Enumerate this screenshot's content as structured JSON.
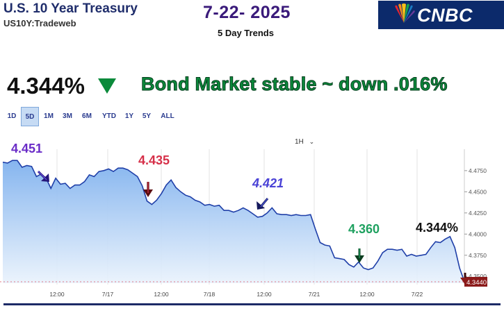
{
  "header": {
    "symbol_title": "U.S. 10 Year Treasury",
    "symbol_sub": "US10Y:Tradeweb",
    "date_title": "7-22- 2025",
    "subtitle": "5 Day Trends",
    "logo_text": "CNBC"
  },
  "quote": {
    "price": "4.344%",
    "direction_icon": "down-triangle-icon",
    "direction_color": "#0b8a3b",
    "headline": "Bond Market stable ~ down .016%"
  },
  "timeframe_tabs": [
    {
      "label": "1D",
      "active": false
    },
    {
      "label": "5D",
      "active": true
    },
    {
      "label": "1M",
      "active": false
    },
    {
      "label": "3M",
      "active": false
    },
    {
      "label": "6M",
      "active": false
    },
    {
      "label": "YTD",
      "active": false
    },
    {
      "label": "1Y",
      "active": false
    },
    {
      "label": "5Y",
      "active": false
    },
    {
      "label": "ALL",
      "active": false
    }
  ],
  "interval_select": "1H",
  "chart_data": {
    "type": "area",
    "x_labels": [
      "12:00",
      "7/17",
      "12:00",
      "7/18",
      "12:00",
      "7/21",
      "12:00",
      "7/22"
    ],
    "y_ticks": [
      "4.4750",
      "4.4500",
      "4.4250",
      "4.4000",
      "4.3750",
      "4.3500"
    ],
    "ylim": [
      4.342,
      4.488
    ],
    "current_value_label": "4.3440",
    "line_color": "#1f3fa8",
    "fill_color": "#9cc3f0",
    "points": [
      4.485,
      4.484,
      4.487,
      4.487,
      4.479,
      4.481,
      4.48,
      4.468,
      4.471,
      4.466,
      4.454,
      4.466,
      4.459,
      4.46,
      4.454,
      4.458,
      4.458,
      4.462,
      4.47,
      4.468,
      4.474,
      4.475,
      4.477,
      4.474,
      4.478,
      4.478,
      4.476,
      4.472,
      4.468,
      4.457,
      4.439,
      4.435,
      4.44,
      4.448,
      4.458,
      4.464,
      4.455,
      4.45,
      4.446,
      4.444,
      4.44,
      4.438,
      4.434,
      4.435,
      4.433,
      4.434,
      4.428,
      4.428,
      4.426,
      4.428,
      4.431,
      4.428,
      4.424,
      4.42,
      4.421,
      4.425,
      4.431,
      4.424,
      4.423,
      4.423,
      4.422,
      4.423,
      4.422,
      4.422,
      4.423,
      4.406,
      4.39,
      4.387,
      4.386,
      4.372,
      4.371,
      4.37,
      4.364,
      4.361,
      4.367,
      4.36,
      4.358,
      4.36,
      4.368,
      4.378,
      4.382,
      4.382,
      4.381,
      4.382,
      4.374,
      4.376,
      4.374,
      4.375,
      4.376,
      4.384,
      4.391,
      4.39,
      4.394,
      4.397,
      4.384,
      4.36,
      4.344
    ],
    "annotations": [
      {
        "text": "4.451",
        "color": "#6a2cc7"
      },
      {
        "text": "4.435",
        "color": "#d63049"
      },
      {
        "text": "4.421",
        "color": "#4a42d6"
      },
      {
        "text": "4.360",
        "color": "#1fa160"
      },
      {
        "text": "4.344%",
        "color": "#111111"
      }
    ]
  }
}
